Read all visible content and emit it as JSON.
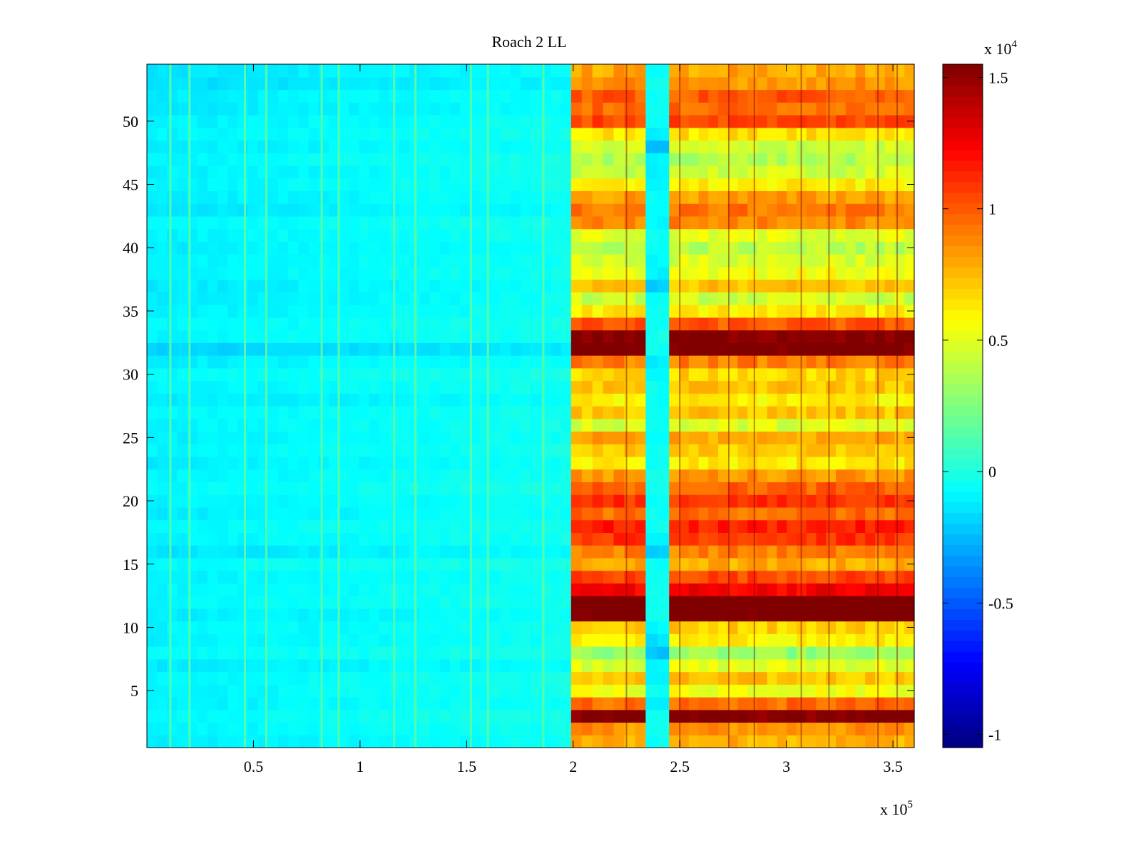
{
  "chart_data": {
    "type": "heatmap",
    "title": "Roach 2 LL",
    "xlabel": "",
    "ylabel": "",
    "x_multiplier_label": {
      "base": "x 10",
      "exponent": "5"
    },
    "xlim": [
      0,
      3.6
    ],
    "x_ticks": [
      0.5,
      1,
      1.5,
      2,
      2.5,
      3,
      3.5
    ],
    "x_tick_labels": [
      "0.5",
      "1",
      "1.5",
      "2",
      "2.5",
      "3",
      "3.5"
    ],
    "ylim": [
      0.5,
      54.5
    ],
    "y_ticks": [
      5,
      10,
      15,
      20,
      25,
      30,
      35,
      40,
      45,
      50
    ],
    "y_tick_labels": [
      "5",
      "10",
      "15",
      "20",
      "25",
      "30",
      "35",
      "40",
      "45",
      "50"
    ],
    "rows": 54,
    "colormap": "jet",
    "colorbar": {
      "range": [
        -1.05,
        1.55
      ],
      "ticks": [
        -1,
        -0.5,
        0,
        0.5,
        1,
        1.5
      ],
      "tick_labels": [
        "-1",
        "-0.5",
        "0",
        "0.5",
        "1",
        "1.5"
      ],
      "multiplier_label": {
        "base": "x 10",
        "exponent": "4"
      }
    },
    "segments": {
      "boundaries_x": [
        0,
        1.99,
        2.34,
        2.45,
        3.6
      ],
      "segment_labels": [
        "low",
        "high",
        "gap",
        "high"
      ]
    },
    "row_levels_low": [
      -0.12,
      -0.1,
      -0.08,
      -0.11,
      -0.1,
      -0.09,
      -0.13,
      -0.08,
      -0.11,
      -0.1,
      -0.12,
      -0.09,
      -0.1,
      -0.11,
      -0.08,
      -0.14,
      -0.1,
      -0.09,
      -0.12,
      -0.11,
      -0.08,
      -0.1,
      -0.12,
      -0.09,
      -0.11,
      -0.1,
      -0.09,
      -0.13,
      -0.1,
      -0.08,
      -0.12,
      -0.19,
      -0.1,
      -0.09,
      -0.11,
      -0.12,
      -0.13,
      -0.1,
      -0.11,
      -0.12,
      -0.1,
      -0.09,
      -0.14,
      -0.12,
      -0.1,
      -0.11,
      -0.09,
      -0.12,
      -0.1,
      -0.11,
      -0.13,
      -0.12,
      -0.16,
      -0.14
    ],
    "row_levels_high": [
      0.78,
      0.85,
      1.55,
      0.95,
      0.55,
      0.72,
      0.5,
      0.3,
      0.6,
      0.7,
      1.6,
      1.62,
      1.25,
      1.05,
      0.78,
      0.9,
      1.1,
      1.15,
      0.95,
      1.1,
      0.98,
      0.85,
      0.62,
      0.7,
      0.8,
      0.48,
      0.72,
      0.6,
      0.72,
      0.68,
      0.9,
      1.58,
      1.55,
      1.0,
      0.62,
      0.45,
      0.72,
      0.55,
      0.48,
      0.4,
      0.5,
      0.88,
      0.92,
      0.82,
      0.6,
      0.45,
      0.38,
      0.45,
      0.65,
      1.05,
      0.95,
      1.0,
      0.85,
      0.8
    ],
    "row_levels_gap": [
      -0.05,
      -0.04,
      -0.03,
      -0.12,
      -0.05,
      -0.1,
      -0.08,
      -0.22,
      -0.15,
      -0.08,
      -0.04,
      -0.02,
      -0.04,
      -0.05,
      -0.06,
      -0.2,
      -0.1,
      -0.05,
      -0.04,
      -0.06,
      -0.05,
      -0.04,
      -0.05,
      -0.06,
      -0.05,
      -0.04,
      -0.05,
      -0.06,
      -0.05,
      -0.1,
      -0.12,
      -0.05,
      -0.03,
      -0.04,
      -0.05,
      -0.08,
      -0.2,
      -0.1,
      -0.08,
      -0.06,
      -0.06,
      -0.08,
      -0.08,
      -0.06,
      -0.08,
      -0.1,
      -0.1,
      -0.25,
      -0.1,
      -0.05,
      -0.05,
      -0.06,
      -0.05,
      -0.06
    ],
    "vertical_streaks_x": [
      0.11,
      0.2,
      0.46,
      0.56,
      0.82,
      0.9,
      1.16,
      1.26,
      1.52,
      1.6,
      1.86
    ],
    "vertical_streaks_level": 0.18,
    "dark_streaks_x": [
      2.25,
      2.5,
      2.73,
      2.85,
      3.07,
      3.2,
      3.43,
      3.52
    ]
  }
}
